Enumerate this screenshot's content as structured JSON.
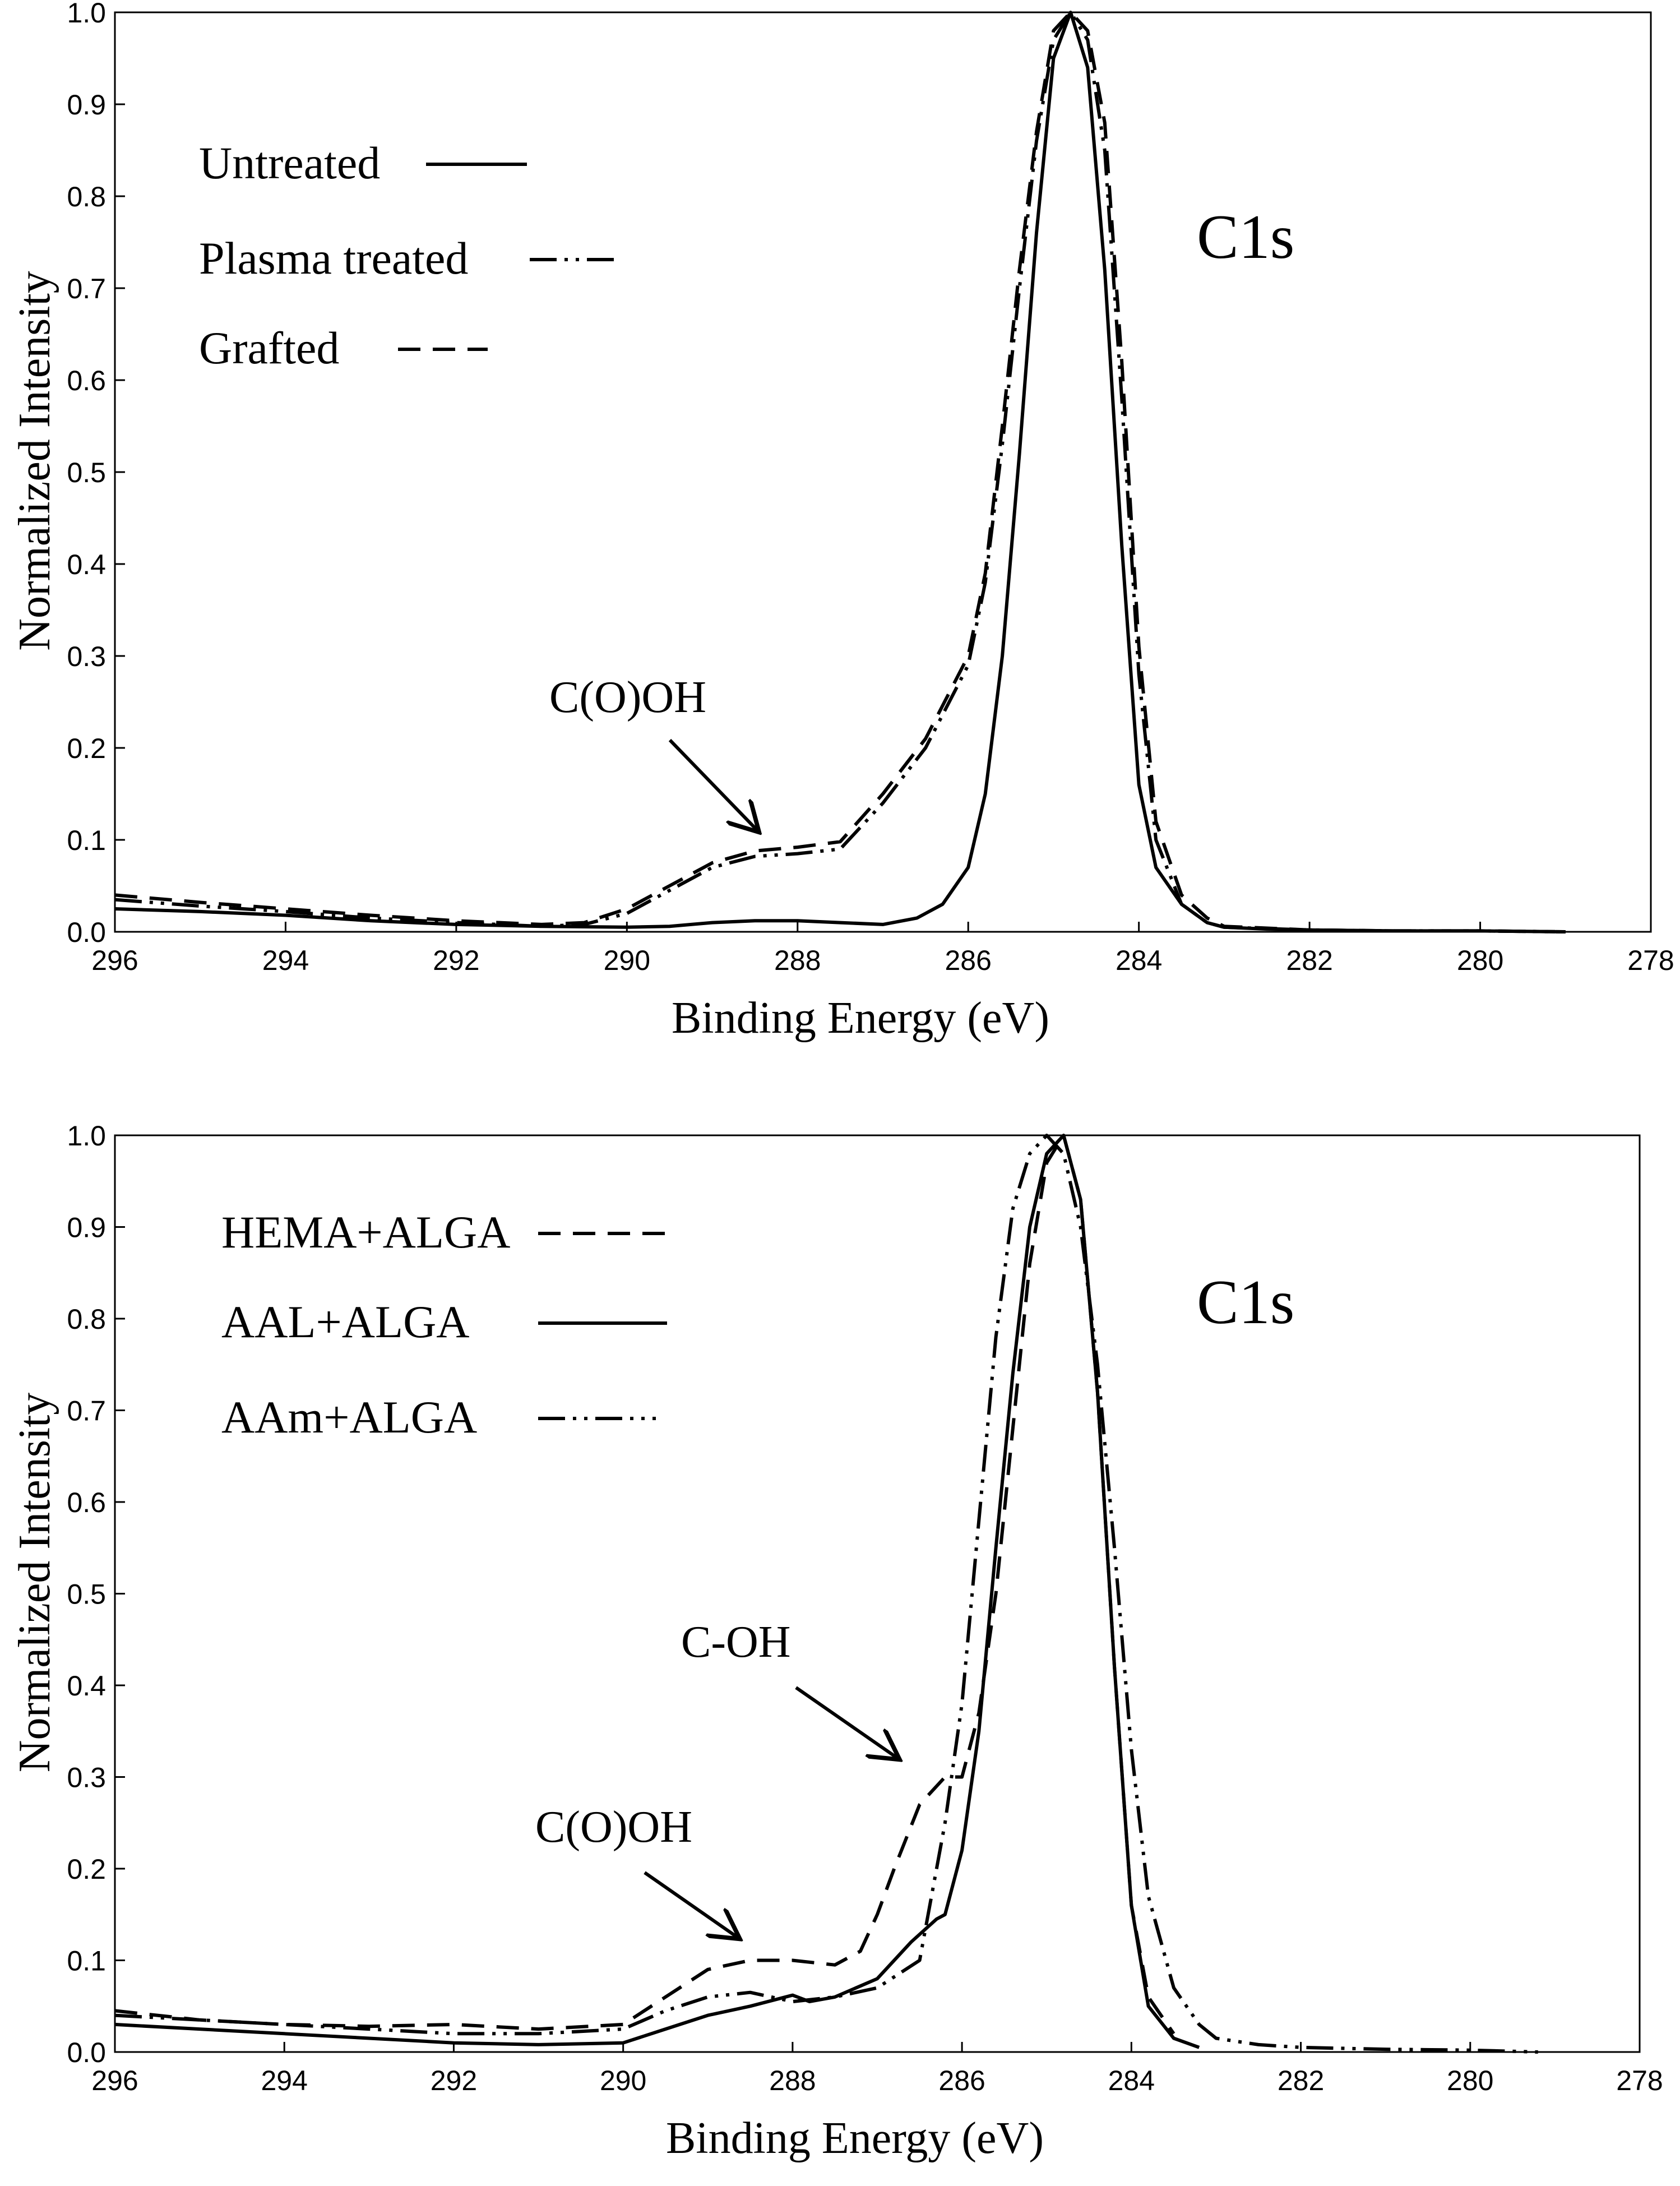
{
  "chart_data": [
    {
      "type": "line",
      "panel_label": "C1s",
      "xlabel": "Binding Energy (eV)",
      "ylabel": "Normalized Intensity",
      "xlim": [
        296,
        278
      ],
      "ylim": [
        0,
        1.0
      ],
      "x_ticks": [
        "296",
        "294",
        "292",
        "290",
        "288",
        "286",
        "284",
        "282",
        "280",
        "278"
      ],
      "y_ticks": [
        "0.0",
        "0.1",
        "0.2",
        "0.3",
        "0.4",
        "0.5",
        "0.6",
        "0.7",
        "0.8",
        "0.9",
        "1.0"
      ],
      "legend_position": "top-left",
      "series": [
        {
          "name": "Untreated",
          "style": "solid",
          "x": [
            296,
            295,
            294,
            293,
            292,
            291.5,
            291,
            290,
            289.5,
            289,
            288.5,
            288,
            287.5,
            287,
            286.6,
            286.3,
            286,
            285.8,
            285.6,
            285.4,
            285.2,
            285.0,
            284.8,
            284.6,
            284.4,
            284.2,
            284.0,
            283.8,
            283.5,
            283.2,
            283,
            282.5,
            282,
            281,
            280,
            279
          ],
          "y": [
            0.025,
            0.022,
            0.018,
            0.012,
            0.008,
            0.007,
            0.006,
            0.005,
            0.006,
            0.01,
            0.012,
            0.012,
            0.01,
            0.008,
            0.015,
            0.03,
            0.07,
            0.15,
            0.3,
            0.52,
            0.76,
            0.95,
            1.0,
            0.94,
            0.72,
            0.42,
            0.16,
            0.07,
            0.03,
            0.01,
            0.005,
            0.003,
            0.002,
            0.001,
            0.001,
            0.0
          ]
        },
        {
          "name": "Plasma treated",
          "style": "dash-dot-dot",
          "x": [
            296,
            295,
            294,
            293,
            292,
            291,
            290.5,
            290,
            289.5,
            289,
            288.5,
            288,
            287.5,
            287,
            286.5,
            286,
            285.8,
            285.6,
            285.4,
            285.2,
            285.0,
            284.8,
            284.6,
            284.4,
            284.2,
            284.0,
            283.8,
            283.5,
            283.2,
            283,
            282,
            281,
            280,
            279
          ],
          "y": [
            0.035,
            0.028,
            0.022,
            0.015,
            0.01,
            0.006,
            0.008,
            0.02,
            0.045,
            0.07,
            0.082,
            0.085,
            0.09,
            0.14,
            0.2,
            0.29,
            0.38,
            0.53,
            0.7,
            0.86,
            0.97,
            1.0,
            0.97,
            0.85,
            0.58,
            0.28,
            0.1,
            0.03,
            0.01,
            0.005,
            0.002,
            0.001,
            0.001,
            0.0
          ]
        },
        {
          "name": "Grafted",
          "style": "dashed",
          "x": [
            296,
            295,
            294,
            293,
            292,
            291,
            290.5,
            290,
            289.5,
            289,
            288.5,
            288,
            287.5,
            287,
            286.5,
            286,
            285.8,
            285.6,
            285.4,
            285.2,
            285.0,
            284.8,
            284.6,
            284.4,
            284.2,
            284.0,
            283.8,
            283.5,
            283.2,
            283,
            282,
            281,
            280,
            279
          ],
          "y": [
            0.04,
            0.032,
            0.025,
            0.018,
            0.012,
            0.008,
            0.01,
            0.025,
            0.05,
            0.075,
            0.088,
            0.092,
            0.098,
            0.15,
            0.21,
            0.3,
            0.39,
            0.55,
            0.72,
            0.87,
            0.98,
            1.0,
            0.98,
            0.88,
            0.62,
            0.31,
            0.12,
            0.04,
            0.015,
            0.006,
            0.002,
            0.001,
            0.001,
            0.0
          ]
        }
      ],
      "annotations": [
        {
          "text": "C(O)OH",
          "x": 288.5,
          "y": 0.1
        }
      ]
    },
    {
      "type": "line",
      "panel_label": "C1s",
      "xlabel": "Binding Energy (eV)",
      "ylabel": "Normalized Intensity",
      "xlim": [
        296,
        278
      ],
      "ylim": [
        0,
        1.0
      ],
      "x_ticks": [
        "296",
        "294",
        "292",
        "290",
        "288",
        "286",
        "284",
        "282",
        "280",
        "278"
      ],
      "y_ticks": [
        "0.0",
        "0.1",
        "0.2",
        "0.3",
        "0.4",
        "0.5",
        "0.6",
        "0.7",
        "0.8",
        "0.9",
        "1.0"
      ],
      "legend_position": "top-left",
      "series": [
        {
          "name": "HEMA+ALGA",
          "style": "dashed",
          "x": [
            296,
            295,
            294,
            293,
            292,
            291,
            290,
            289.5,
            289,
            288.5,
            288,
            287.5,
            287.2,
            287,
            286.8,
            286.5,
            286.2,
            286,
            285.8,
            285.6,
            285.4,
            285.2,
            285.0,
            284.8,
            284.6,
            284.4,
            284.2,
            284.0,
            283.8,
            283.5
          ],
          "y": [
            0.045,
            0.035,
            0.03,
            0.028,
            0.03,
            0.025,
            0.03,
            0.06,
            0.09,
            0.1,
            0.1,
            0.095,
            0.11,
            0.15,
            0.2,
            0.27,
            0.3,
            0.3,
            0.37,
            0.5,
            0.68,
            0.86,
            0.97,
            1.0,
            0.93,
            0.72,
            0.42,
            0.16,
            0.06,
            0.02
          ]
        },
        {
          "name": "AAL+ALGA",
          "style": "solid",
          "x": [
            296,
            295,
            294,
            293,
            292,
            291,
            290,
            289.5,
            289,
            288.5,
            288,
            287.8,
            287.5,
            287,
            286.6,
            286.3,
            286.2,
            286,
            285.8,
            285.6,
            285.4,
            285.2,
            285.0,
            284.8,
            284.6,
            284.4,
            284.2,
            284.0,
            283.8,
            283.5,
            283.2
          ],
          "y": [
            0.03,
            0.025,
            0.02,
            0.015,
            0.01,
            0.008,
            0.01,
            0.025,
            0.04,
            0.05,
            0.062,
            0.055,
            0.06,
            0.08,
            0.12,
            0.145,
            0.15,
            0.22,
            0.35,
            0.55,
            0.74,
            0.9,
            0.98,
            1.0,
            0.93,
            0.72,
            0.42,
            0.16,
            0.05,
            0.015,
            0.005
          ]
        },
        {
          "name": "AAm+ALGA",
          "style": "dash-dot-dot",
          "x": [
            296,
            295,
            294,
            293,
            292,
            291,
            290,
            289.5,
            289,
            288.5,
            288,
            287.5,
            287,
            286.5,
            286.2,
            286,
            285.8,
            285.6,
            285.4,
            285.2,
            285.0,
            284.8,
            284.6,
            284.4,
            284.2,
            284.0,
            283.8,
            283.5,
            283.2,
            283,
            282.5,
            282,
            281,
            280,
            279.2
          ],
          "y": [
            0.04,
            0.035,
            0.03,
            0.025,
            0.02,
            0.02,
            0.025,
            0.045,
            0.06,
            0.065,
            0.055,
            0.06,
            0.07,
            0.1,
            0.25,
            0.38,
            0.58,
            0.78,
            0.92,
            0.98,
            1.0,
            0.98,
            0.9,
            0.75,
            0.55,
            0.33,
            0.17,
            0.07,
            0.03,
            0.015,
            0.008,
            0.005,
            0.003,
            0.002,
            0.0
          ]
        }
      ],
      "annotations": [
        {
          "text": "C-OH",
          "x": 286.6,
          "y": 0.3
        },
        {
          "text": "C(O)OH",
          "x": 288.6,
          "y": 0.08
        }
      ]
    }
  ]
}
